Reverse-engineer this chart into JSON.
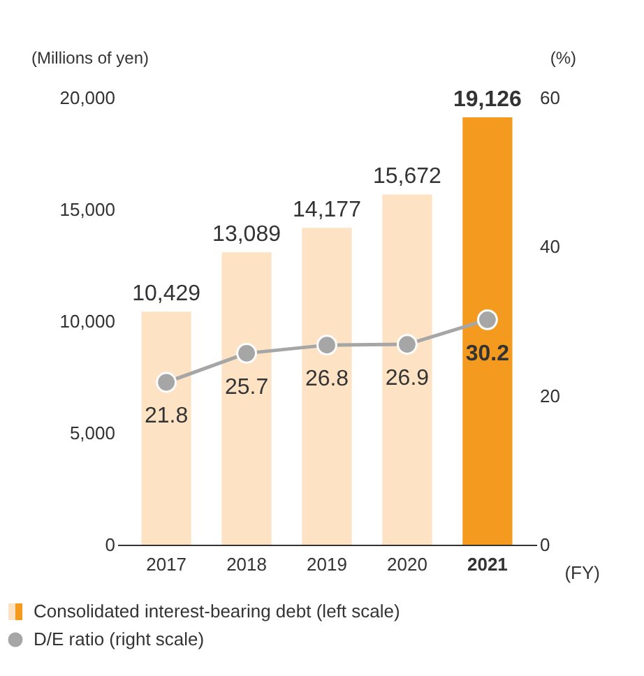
{
  "chart_data": {
    "type": "bar",
    "xlabel": "(FY)",
    "ylabel": "(Millions of yen)",
    "y2label": "(%)",
    "categories": [
      "2017",
      "2018",
      "2019",
      "2020",
      "2021"
    ],
    "series": [
      {
        "name": "Consolidated interest-bearing debt (left scale)",
        "color": "#f39a1f",
        "colors": [
          "#fde3c4",
          "#fde3c4",
          "#fde3c4",
          "#fde3c4",
          "#f39a1f"
        ],
        "values": [
          10429,
          13089,
          14177,
          15672,
          19126
        ],
        "value_labels": [
          "10,429",
          "13,089",
          "14,177",
          "15,672",
          "19,126"
        ]
      },
      {
        "name": "D/E ratio (right scale)",
        "type": "line",
        "axis": "y2",
        "color": "#a6a6a6",
        "marker": "circle",
        "values": [
          21.8,
          25.7,
          26.8,
          26.9,
          30.2
        ]
      }
    ],
    "ylim": [
      0,
      20000
    ],
    "yticks": [
      {
        "value": 0,
        "label": "0"
      },
      {
        "value": 5000,
        "label": "5,000"
      },
      {
        "value": 10000,
        "label": "10,000"
      },
      {
        "value": 15000,
        "label": "15,000"
      },
      {
        "value": 20000,
        "label": "20,000"
      }
    ],
    "y2lim": [
      0,
      60
    ],
    "y2ticks": [
      0,
      20,
      40,
      60
    ],
    "data_labels": true,
    "legend": "bottom",
    "grid": false
  }
}
